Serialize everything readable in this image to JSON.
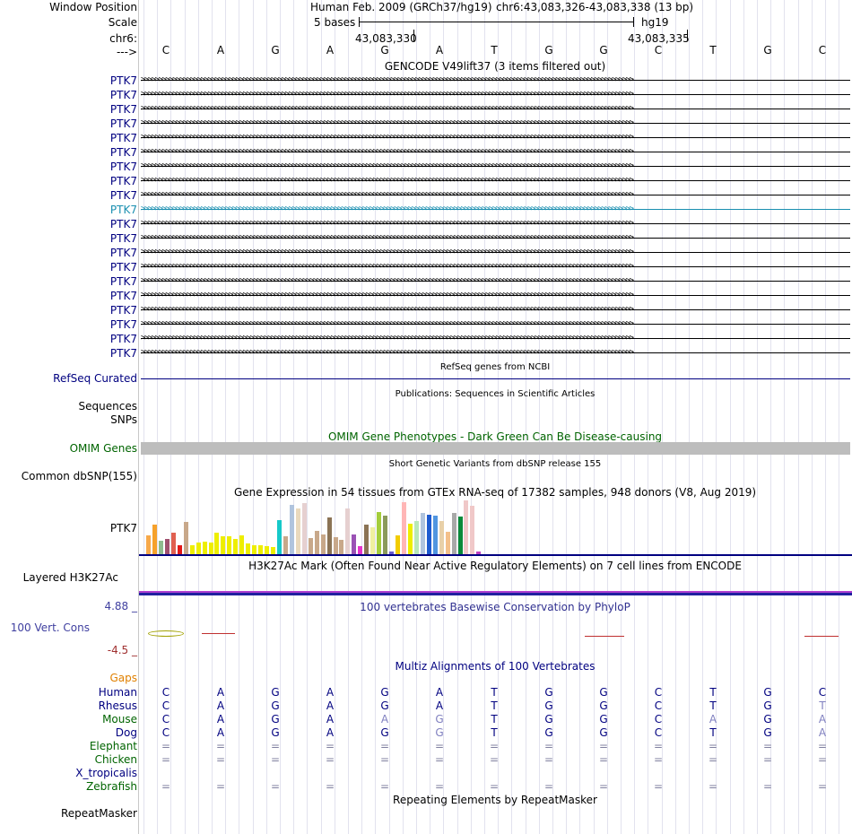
{
  "header": {
    "window_position_label": "Window Position",
    "scale_label": "Scale",
    "chrom_label": "chr6:",
    "strand_label": "--->",
    "assembly_text": "Human Feb. 2009 (GRCh37/hg19)",
    "position_text": "chr6:43,083,326-43,083,338 (13 bp)",
    "scale_text": "5 bases",
    "scale_db": "hg19",
    "coord_1": "43,083,330",
    "coord_2": "43,083,335"
  },
  "bases": [
    "C",
    "A",
    "G",
    "A",
    "G",
    "A",
    "T",
    "G",
    "G",
    "C",
    "T",
    "G",
    "C"
  ],
  "gencode": {
    "title": "GENCODE V49lift37 (3 items filtered out)",
    "gene_name": "PTK7",
    "row_count": 20,
    "highlight_index": 9
  },
  "refseq": {
    "title": "RefSeq genes from NCBI",
    "label": "RefSeq Curated"
  },
  "publications": {
    "title": "Publications: Sequences in Scientific Articles",
    "label1": "Sequences",
    "label2": "SNPs"
  },
  "omim": {
    "title": "OMIM Gene Phenotypes - Dark Green Can Be Disease-causing",
    "label": "OMIM Genes"
  },
  "dbsnp": {
    "title": "Short Genetic Variants from dbSNP release 155",
    "label": "Common dbSNP(155)"
  },
  "gtex": {
    "title": "Gene Expression in 54 tissues from GTEx RNA-seq of 17382 samples, 948 donors (V8, Aug 2019)",
    "label": "PTK7",
    "bars": [
      {
        "v": 0.35,
        "c": "#f7a94a"
      },
      {
        "v": 0.55,
        "c": "#f6a12b"
      },
      {
        "v": 0.25,
        "c": "#8fbc8f"
      },
      {
        "v": 0.28,
        "c": "#a0506e"
      },
      {
        "v": 0.4,
        "c": "#e06050"
      },
      {
        "v": 0.17,
        "c": "#e21818"
      },
      {
        "v": 0.6,
        "c": "#c8a88a"
      },
      {
        "v": 0.16,
        "c": "#eeee00"
      },
      {
        "v": 0.22,
        "c": "#eeee00"
      },
      {
        "v": 0.24,
        "c": "#eeee00"
      },
      {
        "v": 0.22,
        "c": "#eeee00"
      },
      {
        "v": 0.4,
        "c": "#eeee00"
      },
      {
        "v": 0.34,
        "c": "#eeee00"
      },
      {
        "v": 0.33,
        "c": "#eeee00"
      },
      {
        "v": 0.28,
        "c": "#eeee00"
      },
      {
        "v": 0.35,
        "c": "#eeee00"
      },
      {
        "v": 0.2,
        "c": "#eeee00"
      },
      {
        "v": 0.17,
        "c": "#eeee00"
      },
      {
        "v": 0.17,
        "c": "#eeee00"
      },
      {
        "v": 0.15,
        "c": "#eeee00"
      },
      {
        "v": 0.13,
        "c": "#eeee00"
      },
      {
        "v": 0.64,
        "c": "#16c9c9"
      },
      {
        "v": 0.33,
        "c": "#c8a88a"
      },
      {
        "v": 0.92,
        "c": "#b0c4de"
      },
      {
        "v": 0.85,
        "c": "#e9d9bd"
      },
      {
        "v": 0.95,
        "c": "#e6d0d0"
      },
      {
        "v": 0.3,
        "c": "#c8a88a"
      },
      {
        "v": 0.44,
        "c": "#c8a88a"
      },
      {
        "v": 0.36,
        "c": "#c8a88a"
      },
      {
        "v": 0.68,
        "c": "#8b7355"
      },
      {
        "v": 0.31,
        "c": "#c8a88a"
      },
      {
        "v": 0.27,
        "c": "#c8a88a"
      },
      {
        "v": 0.85,
        "c": "#e6d0d0"
      },
      {
        "v": 0.37,
        "c": "#9b52b5"
      },
      {
        "v": 0.15,
        "c": "#e633cc"
      },
      {
        "v": 0.55,
        "c": "#8b7355"
      },
      {
        "v": 0.5,
        "c": "#f0f0a0"
      },
      {
        "v": 0.78,
        "c": "#a4cd3c"
      },
      {
        "v": 0.72,
        "c": "#8b9a5b"
      },
      {
        "v": 0.05,
        "c": "#6a5acd"
      },
      {
        "v": 0.35,
        "c": "#f2cc00"
      },
      {
        "v": 0.97,
        "c": "#ffb6b6"
      },
      {
        "v": 0.57,
        "c": "#eeee00"
      },
      {
        "v": 0.62,
        "c": "#b8e8b8"
      },
      {
        "v": 0.76,
        "c": "#b0c4de"
      },
      {
        "v": 0.74,
        "c": "#1e5bd0"
      },
      {
        "v": 0.72,
        "c": "#5095e0"
      },
      {
        "v": 0.62,
        "c": "#e8d0a8"
      },
      {
        "v": 0.41,
        "c": "#f4c08a"
      },
      {
        "v": 0.77,
        "c": "#a8a8a8"
      },
      {
        "v": 0.7,
        "c": "#0a8a3a"
      },
      {
        "v": 1.0,
        "c": "#f0c8c8"
      },
      {
        "v": 0.9,
        "c": "#f0c8c8"
      },
      {
        "v": 0.05,
        "c": "#c040c0"
      }
    ]
  },
  "h3k27ac": {
    "title": "H3K27Ac Mark (Often Found Near Active Regulatory Elements) on 7 cell lines from ENCODE",
    "label": "Layered H3K27Ac"
  },
  "phylop": {
    "title": "100 vertebrates Basewise Conservation by PhyloP",
    "label": "100 Vert. Cons",
    "max": "4.88 _",
    "min": "-4.5 _"
  },
  "multiz": {
    "title": "Multiz Alignments of 100 Vertebrates",
    "gaps_label": "Gaps",
    "species": [
      {
        "name": "Human",
        "color": "#000080",
        "seq": [
          "C",
          "A",
          "G",
          "A",
          "G",
          "A",
          "T",
          "G",
          "G",
          "C",
          "T",
          "G",
          "C"
        ]
      },
      {
        "name": "Rhesus",
        "color": "#000080",
        "seq": [
          "C",
          "A",
          "G",
          "A",
          "G",
          "A",
          "T",
          "G",
          "G",
          "C",
          "T",
          "G",
          "T"
        ]
      },
      {
        "name": "Mouse",
        "color": "#006400",
        "seq": [
          "C",
          "A",
          "G",
          "A",
          "A",
          "G",
          "T",
          "G",
          "G",
          "C",
          "A",
          "G",
          "A"
        ]
      },
      {
        "name": "Dog",
        "color": "#000080",
        "seq": [
          "C",
          "A",
          "G",
          "A",
          "G",
          "G",
          "T",
          "G",
          "G",
          "C",
          "T",
          "G",
          "A"
        ]
      },
      {
        "name": "Elephant",
        "color": "#006400",
        "seq": [
          "=",
          "=",
          "=",
          "=",
          "=",
          "=",
          "=",
          "=",
          "=",
          "=",
          "=",
          "=",
          "="
        ]
      },
      {
        "name": "Chicken",
        "color": "#006400",
        "seq": [
          "=",
          "=",
          "=",
          "=",
          "=",
          "=",
          "=",
          "=",
          "=",
          "=",
          "=",
          "=",
          "="
        ]
      },
      {
        "name": "X_tropicalis",
        "color": "#000080",
        "seq": [
          "",
          "",
          "",
          "",
          "",
          "",
          "",
          "",
          "",
          "",
          "",
          "",
          ""
        ]
      },
      {
        "name": "Zebrafish",
        "color": "#006400",
        "seq": [
          "=",
          "=",
          "=",
          "=",
          "=",
          "=",
          "=",
          "=",
          "=",
          "=",
          "=",
          "=",
          "="
        ]
      }
    ],
    "mismatch": [
      [],
      [
        12
      ],
      [
        4,
        5,
        10,
        12
      ],
      [
        5,
        12
      ],
      [],
      [],
      [],
      []
    ]
  },
  "repeatmasker": {
    "title": "Repeating Elements by RepeatMasker",
    "label": "RepeatMasker"
  }
}
